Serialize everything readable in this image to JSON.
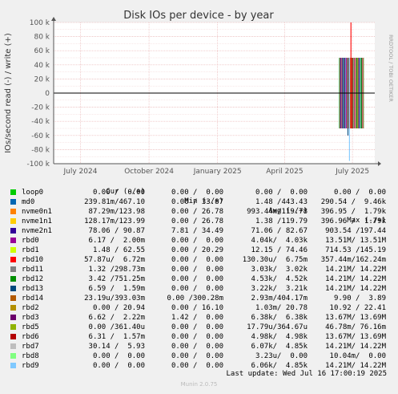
{
  "chart_data": {
    "type": "line",
    "title": "Disk IOs per device - by year",
    "ylabel": "IOs/second read (-) / write (+)",
    "side_label": "RRDTOOL / TOBI OETIKER",
    "yticks": [
      "100 k",
      "80 k",
      "60 k",
      "40 k",
      "20 k",
      "0",
      "-20 k",
      "-40 k",
      "-60 k",
      "-80 k",
      "-100 k"
    ],
    "ytick_values": [
      100000,
      80000,
      60000,
      40000,
      20000,
      0,
      -20000,
      -40000,
      -60000,
      -80000,
      -100000
    ],
    "ylim": [
      -100000,
      100000
    ],
    "xticks": [
      "July 2024",
      "October 2024",
      "January 2025",
      "April 2025",
      "July 2025"
    ],
    "xlim": [
      "2024-05-26",
      "2025-07-31"
    ],
    "xtick_dates": [
      "2024-07-01",
      "2024-10-01",
      "2025-01-01",
      "2025-04-01",
      "2025-07-01"
    ],
    "grid": true,
    "data_start": "2025-06-13",
    "data_end": "2025-07-16",
    "series_colors": [
      "#00cc00",
      "#0066b3",
      "#ff8000",
      "#ffcc00",
      "#330099",
      "#990099",
      "#ccff00",
      "#ff0000",
      "#808080",
      "#008f00",
      "#00487d",
      "#b35a00",
      "#b38f00",
      "#6b006b",
      "#8fb300",
      "#b30000",
      "#bebebe",
      "#80ff80",
      "#80c9ff"
    ],
    "spikes": [
      {
        "date": "2025-06-15",
        "write": 50000,
        "read": -50000,
        "color": "#330099"
      },
      {
        "date": "2025-06-17",
        "write": 50000,
        "read": -50000,
        "color": "#990099"
      },
      {
        "date": "2025-06-19",
        "write": 50000,
        "read": -50000,
        "color": "#0066b3"
      },
      {
        "date": "2025-06-21",
        "write": 50000,
        "read": -50000,
        "color": "#330099"
      },
      {
        "date": "2025-06-23",
        "write": 50000,
        "read": -50000,
        "color": "#990099"
      },
      {
        "date": "2025-06-25",
        "write": 50000,
        "read": -60000,
        "color": "#00487d"
      },
      {
        "date": "2025-06-27",
        "write": 50000,
        "read": -96000,
        "color": "#80c9ff"
      },
      {
        "date": "2025-06-29",
        "write": 100000,
        "read": -50000,
        "color": "#ff0000"
      },
      {
        "date": "2025-07-01",
        "write": 50000,
        "read": -50000,
        "color": "#b30000"
      },
      {
        "date": "2025-07-04",
        "write": 50000,
        "read": -50000,
        "color": "#990099"
      },
      {
        "date": "2025-07-07",
        "write": 50000,
        "read": -50000,
        "color": "#008f00"
      },
      {
        "date": "2025-07-10",
        "write": 50000,
        "read": -50000,
        "color": "#330099"
      },
      {
        "date": "2025-07-13",
        "write": 50000,
        "read": -50000,
        "color": "#008f00"
      }
    ]
  },
  "legend": {
    "headers": {
      "cur": "Cur (-/+)",
      "min": "Min (-/+)",
      "avg": "Avg (-/+)",
      "max": "Max (-/+)"
    },
    "rows": [
      {
        "name": "loop0",
        "color": "#00cc00",
        "cur": "0.00 /  0.00",
        "min": "0.00 /  0.00",
        "avg": "0.00 /  0.00",
        "max": "0.00 /  0.00"
      },
      {
        "name": "md0",
        "color": "#0066b3",
        "cur": "239.81m/467.10",
        "min": "0.00 / 33.87",
        "avg": "1.48 /443.43",
        "max": "290.54 /  9.46k"
      },
      {
        "name": "nvme0n1",
        "color": "#ff8000",
        "cur": "87.29m/123.98",
        "min": "0.00 / 26.78",
        "avg": "993.44m/119.78",
        "max": "396.95 /  1.79k"
      },
      {
        "name": "nvme1n1",
        "color": "#ffcc00",
        "cur": "128.17m/123.99",
        "min": "0.00 / 26.78",
        "avg": "1.38 /119.79",
        "max": "396.96 /  1.79k"
      },
      {
        "name": "nvme2n1",
        "color": "#330099",
        "cur": "78.06 / 90.87",
        "min": "7.81 / 34.49",
        "avg": "71.06 / 82.67",
        "max": "903.54 /197.44"
      },
      {
        "name": "rbd0",
        "color": "#990099",
        "cur": "6.17 /  2.00m",
        "min": "0.00 /  0.00",
        "avg": "4.04k/  4.03k",
        "max": "13.51M/ 13.51M"
      },
      {
        "name": "rbd1",
        "color": "#ccff00",
        "cur": "1.48 / 62.55",
        "min": "0.00 / 20.29",
        "avg": "12.15 / 74.46",
        "max": "714.53 /145.19"
      },
      {
        "name": "rbd10",
        "color": "#ff0000",
        "cur": "57.87u/  6.72m",
        "min": "0.00 /  0.00",
        "avg": "130.30u/  6.75m",
        "max": "357.44m/162.24m"
      },
      {
        "name": "rbd11",
        "color": "#808080",
        "cur": "1.32 /298.73m",
        "min": "0.00 /  0.00",
        "avg": "3.03k/  3.02k",
        "max": "14.21M/ 14.22M"
      },
      {
        "name": "rbd12",
        "color": "#008f00",
        "cur": "3.42 /751.25m",
        "min": "0.00 /  0.00",
        "avg": "4.53k/  4.52k",
        "max": "14.21M/ 14.22M"
      },
      {
        "name": "rbd13",
        "color": "#00487d",
        "cur": "6.59 /  1.59m",
        "min": "0.00 /  0.00",
        "avg": "3.22k/  3.21k",
        "max": "14.21M/ 14.22M"
      },
      {
        "name": "rbd14",
        "color": "#b35a00",
        "cur": "23.19u/393.03m",
        "min": "0.00 /300.28m",
        "avg": "2.93m/404.17m",
        "max": "9.90 /  3.89"
      },
      {
        "name": "rbd2",
        "color": "#b38f00",
        "cur": "0.00 / 20.94",
        "min": "0.00 / 16.10",
        "avg": "1.03m/ 20.78",
        "max": "10.92 / 22.41"
      },
      {
        "name": "rbd3",
        "color": "#6b006b",
        "cur": "6.62 /  2.22m",
        "min": "1.42 /  0.00",
        "avg": "6.38k/  6.38k",
        "max": "13.67M/ 13.69M"
      },
      {
        "name": "rbd5",
        "color": "#8fb300",
        "cur": "0.00 /361.40u",
        "min": "0.00 /  0.00",
        "avg": "17.79u/364.67u",
        "max": "46.78m/ 76.16m"
      },
      {
        "name": "rbd6",
        "color": "#b30000",
        "cur": "6.31 /  1.57m",
        "min": "0.00 /  0.00",
        "avg": "4.98k/  4.98k",
        "max": "13.67M/ 13.69M"
      },
      {
        "name": "rbd7",
        "color": "#bebebe",
        "cur": "30.14 /  5.93",
        "min": "0.00 /  0.00",
        "avg": "6.07k/  4.85k",
        "max": "14.21M/ 14.22M"
      },
      {
        "name": "rbd8",
        "color": "#80ff80",
        "cur": "0.00 /  0.00",
        "min": "0.00 /  0.00",
        "avg": "3.23u/  0.00",
        "max": "10.04m/  0.00"
      },
      {
        "name": "rbd9",
        "color": "#80c9ff",
        "cur": "0.00 /  0.00",
        "min": "0.00 /  0.00",
        "avg": "6.06k/  4.85k",
        "max": "14.21M/ 14.22M"
      }
    ]
  },
  "footer": {
    "last_update": "Last update: Wed Jul 16 17:00:19 2025",
    "generator": "Munin 2.0.75"
  }
}
